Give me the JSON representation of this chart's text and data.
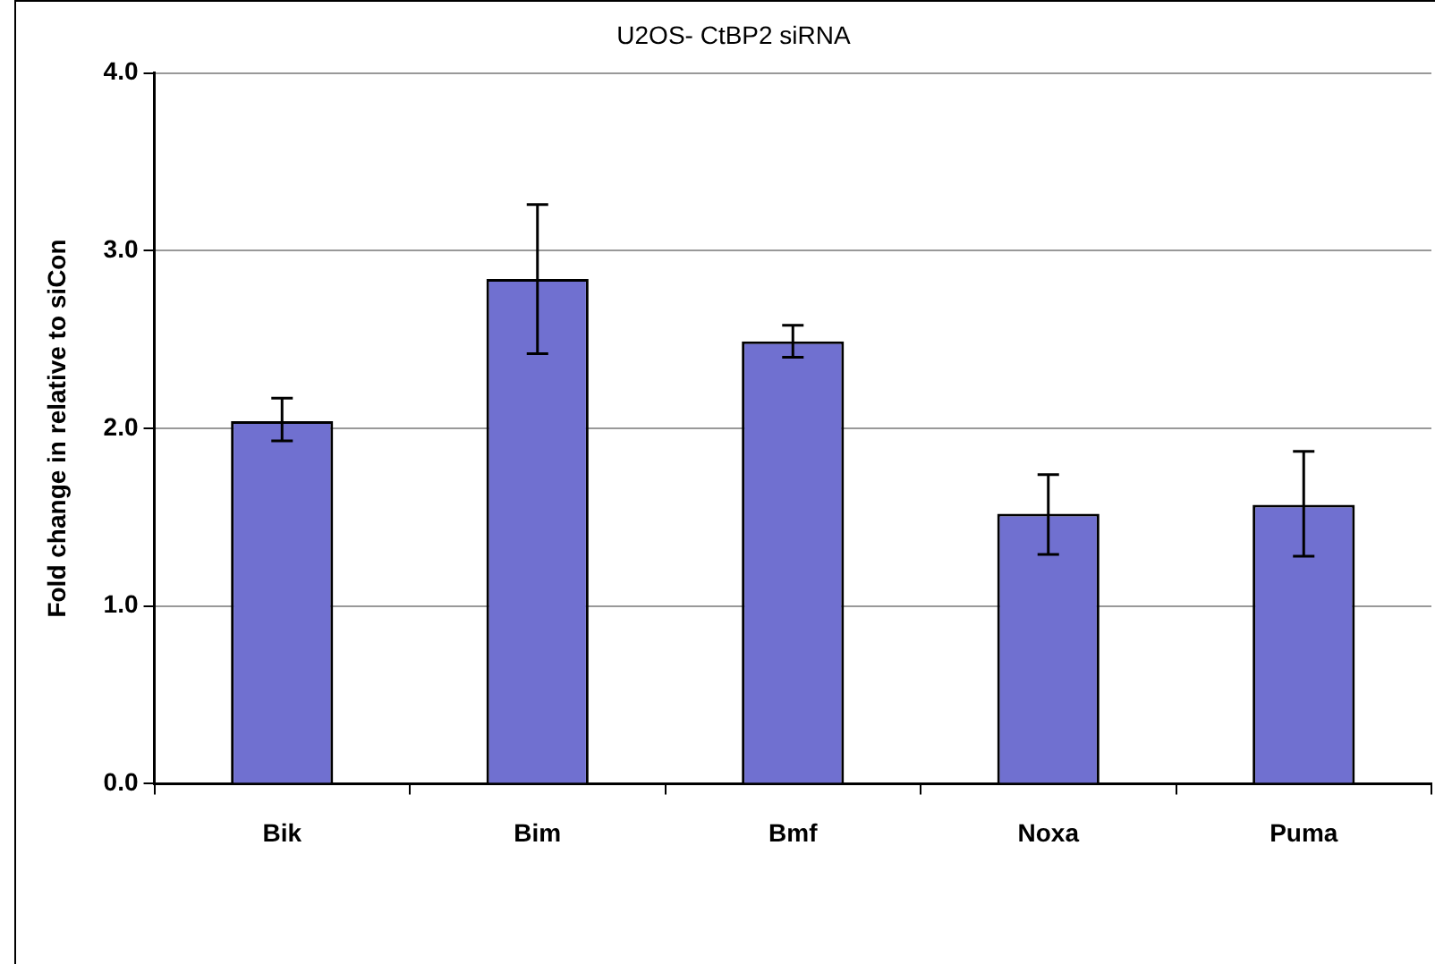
{
  "chart_data": {
    "type": "bar",
    "title": "U2OS- CtBP2 siRNA",
    "ylabel": "Fold change in relative to siCon",
    "categories": [
      "Bik",
      "Bim",
      "Bmf",
      "Noxa",
      "Puma"
    ],
    "values": [
      2.04,
      2.84,
      2.49,
      1.52,
      1.57
    ],
    "errors": [
      [
        1.93,
        2.17
      ],
      [
        2.42,
        3.26
      ],
      [
        2.4,
        2.58
      ],
      [
        1.29,
        1.74
      ],
      [
        1.28,
        1.87
      ]
    ],
    "color": "#7070d0",
    "ylim": [
      0,
      4
    ],
    "yticks": [
      {
        "value": 0,
        "label": "0.0"
      },
      {
        "value": 1,
        "label": "1.0"
      },
      {
        "value": 2,
        "label": "2.0"
      },
      {
        "value": 3,
        "label": "3.0"
      },
      {
        "value": 4,
        "label": "4.0"
      }
    ],
    "grid": "y",
    "legend": false
  }
}
